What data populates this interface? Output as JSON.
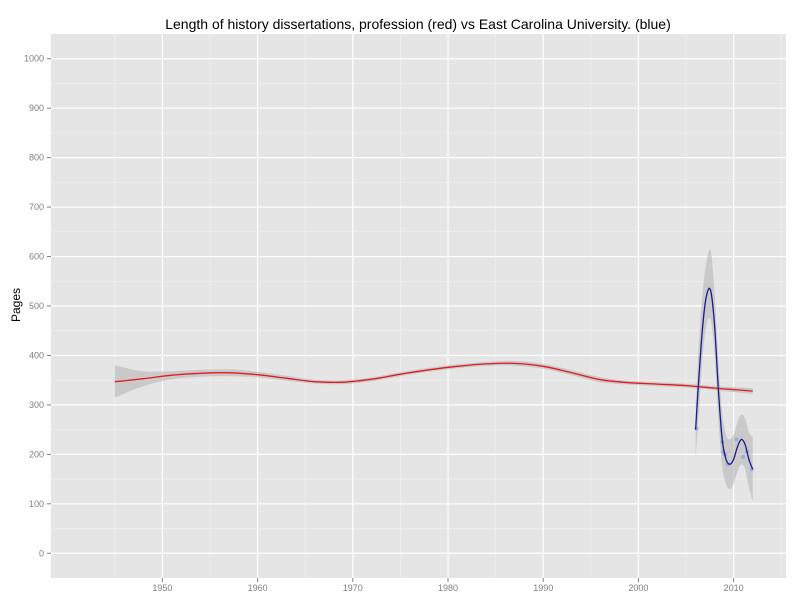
{
  "chart_data": {
    "type": "line",
    "title": "Length of history dissertations, profession (red) vs East Carolina University. (blue)",
    "xlabel": "",
    "ylabel": "Pages",
    "xlim": [
      1938.3,
      2015.5
    ],
    "ylim": [
      -50,
      1050
    ],
    "x_ticks": [
      1950,
      1960,
      1970,
      1980,
      1990,
      2000,
      2010
    ],
    "y_ticks": [
      0,
      100,
      200,
      300,
      400,
      500,
      600,
      700,
      800,
      900,
      1000
    ],
    "grid": true,
    "colors": {
      "panel": "#e5e5e5",
      "grid_major": "#ffffff",
      "grid_minor": "#f2f2f2",
      "ribbon": "#b3b3b3",
      "profession": "#e41a1c",
      "ecu": "#1a1a8c",
      "ecu_points": "#8fa8e0"
    },
    "series": [
      {
        "name": "profession",
        "x": [
          1945,
          1948,
          1951,
          1954,
          1957,
          1960,
          1963,
          1966,
          1969,
          1972,
          1975,
          1978,
          1981,
          1984,
          1987,
          1990,
          1993,
          1996,
          1999,
          2002,
          2005,
          2008,
          2010,
          2012
        ],
        "y": [
          347,
          353,
          360,
          364,
          365,
          361,
          354,
          347,
          346,
          352,
          362,
          371,
          378,
          383,
          384,
          378,
          365,
          351,
          345,
          342,
          339,
          334,
          331,
          328
        ],
        "lower": [
          315,
          338,
          352,
          357,
          358,
          356,
          349,
          343,
          342,
          348,
          358,
          367,
          374,
          379,
          379,
          373,
          360,
          346,
          341,
          338,
          335,
          330,
          326,
          322
        ],
        "upper": [
          380,
          368,
          368,
          371,
          372,
          367,
          359,
          351,
          350,
          356,
          366,
          375,
          382,
          387,
          389,
          383,
          370,
          356,
          349,
          346,
          343,
          338,
          336,
          334
        ]
      },
      {
        "name": "ECU",
        "x": [
          2006.0,
          2006.4,
          2006.8,
          2007.2,
          2007.6,
          2008.0,
          2008.4,
          2008.8,
          2009.2,
          2009.6,
          2010.0,
          2010.4,
          2010.8,
          2011.2,
          2011.6,
          2012.0
        ],
        "y": [
          250,
          370,
          470,
          525,
          530,
          460,
          330,
          230,
          190,
          180,
          190,
          215,
          230,
          220,
          190,
          170
        ],
        "lower": [
          190,
          300,
          410,
          465,
          470,
          400,
          270,
          175,
          140,
          130,
          140,
          165,
          180,
          170,
          135,
          105
        ],
        "upper": [
          300,
          440,
          540,
          595,
          610,
          525,
          390,
          285,
          240,
          230,
          240,
          265,
          280,
          272,
          245,
          235
        ]
      }
    ],
    "points": [
      {
        "x": 2006.1,
        "y": 252
      },
      {
        "x": 2008.8,
        "y": 225
      },
      {
        "x": 2008.9,
        "y": 205
      },
      {
        "x": 2009.1,
        "y": 200
      },
      {
        "x": 2009.4,
        "y": 180
      },
      {
        "x": 2010.3,
        "y": 230
      },
      {
        "x": 2011.0,
        "y": 195
      },
      {
        "x": 2011.4,
        "y": 205
      },
      {
        "x": 2011.9,
        "y": 170
      }
    ]
  }
}
